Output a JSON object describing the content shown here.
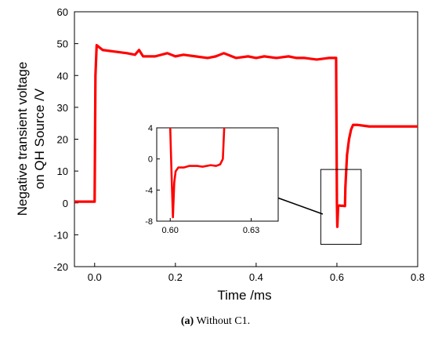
{
  "caption": {
    "tag": "(a)",
    "text": " Without C1."
  },
  "chart_data": [
    {
      "type": "line",
      "xlabel": "Time /ms",
      "ylabel_line1": "Negative transient voltage",
      "ylabel_line2": "on QH Source /V",
      "xlim": [
        -0.05,
        0.8
      ],
      "ylim": [
        -20,
        60
      ],
      "x_ticks": [
        "0.0",
        "0.2",
        "0.4",
        "0.6",
        "0.8"
      ],
      "x_tick_values": [
        0.0,
        0.2,
        0.4,
        0.6,
        0.8
      ],
      "y_ticks": [
        "-20",
        "-10",
        "0",
        "10",
        "20",
        "30",
        "40",
        "50",
        "60"
      ],
      "y_tick_values": [
        -20,
        -10,
        0,
        10,
        20,
        30,
        40,
        50,
        60
      ],
      "line_color": "#ff0000",
      "series": [
        {
          "x": [
            -0.05,
            0.0,
            0.002,
            0.005,
            0.01,
            0.02,
            0.05,
            0.08,
            0.1,
            0.11,
            0.12,
            0.15,
            0.18,
            0.2,
            0.22,
            0.25,
            0.28,
            0.3,
            0.32,
            0.34,
            0.35,
            0.38,
            0.4,
            0.42,
            0.45,
            0.48,
            0.5,
            0.52,
            0.55,
            0.58,
            0.598,
            0.6,
            0.601,
            0.603,
            0.606,
            0.61,
            0.615,
            0.62,
            0.621,
            0.625,
            0.63,
            0.635,
            0.64,
            0.65,
            0.68,
            0.7,
            0.72,
            0.75,
            0.78,
            0.8
          ],
          "y": [
            0.4,
            0.4,
            40,
            49.5,
            49,
            48,
            47.5,
            47,
            46.5,
            48,
            46,
            46,
            47,
            46,
            46.5,
            46,
            45.5,
            46,
            47,
            46,
            45.5,
            46,
            45.5,
            46,
            45.5,
            46,
            45.5,
            45.5,
            45,
            45.5,
            45.5,
            0,
            -7.5,
            -1,
            -0.8,
            -0.9,
            -0.9,
            -1,
            5,
            15,
            20,
            23,
            24.5,
            24.5,
            24,
            24,
            24,
            24,
            24,
            24
          ]
        }
      ],
      "zoom_box": {
        "x": [
          0.56,
          0.66
        ],
        "y": [
          -13,
          10.5
        ]
      },
      "arrow": {
        "from": [
          0.565,
          -3.5
        ],
        "to": [
          0.39,
          4.5
        ]
      }
    },
    {
      "type": "line",
      "xlim": [
        0.595,
        0.64
      ],
      "ylim": [
        -8,
        4
      ],
      "x_ticks": [
        "0.60",
        "0.63"
      ],
      "x_tick_values": [
        0.6,
        0.63
      ],
      "y_ticks": [
        "-8",
        "-4",
        "0",
        "4"
      ],
      "y_tick_values": [
        -8,
        -4,
        0,
        4
      ],
      "line_color": "#ff0000",
      "series": [
        {
          "x": [
            0.6,
            0.6005,
            0.601,
            0.6015,
            0.602,
            0.603,
            0.605,
            0.607,
            0.61,
            0.612,
            0.615,
            0.617,
            0.6185,
            0.6195,
            0.62
          ],
          "y": [
            4,
            -2,
            -7.5,
            -3,
            -1.6,
            -1.1,
            -1.1,
            -0.9,
            -0.9,
            -1.0,
            -0.8,
            -0.9,
            -0.7,
            0,
            4
          ]
        }
      ]
    }
  ]
}
